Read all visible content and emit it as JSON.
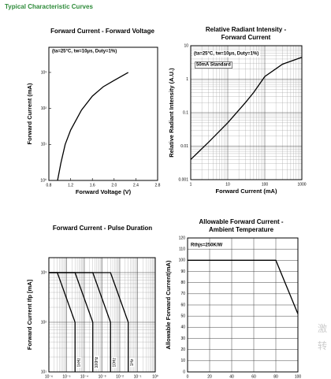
{
  "page_title": "Typical Characteristic Curves",
  "watermark": [
    "激",
    "转"
  ],
  "chart_data": [
    {
      "type": "line",
      "title": "Forward Current - Forward Voltage",
      "x_label": "Forward Voltage (V)",
      "y_label": "Forward Current (mA)",
      "annotations": [
        "(ta=25°C, tw=10μs, Duty=1%)"
      ],
      "xscale": "linear",
      "yscale": "log",
      "grid": false,
      "xlim": [
        0.8,
        2.8
      ],
      "xticks": [
        0.8,
        1.2,
        1.6,
        {
          "value": 2.0,
          "label": "2.0"
        },
        2.4,
        2.8
      ],
      "ylim": [
        1,
        5000
      ],
      "yticks": [
        {
          "value": 1,
          "label": "10⁰"
        },
        {
          "value": 10,
          "label": "10¹"
        },
        {
          "value": 100,
          "label": "10²"
        },
        {
          "value": 1000,
          "label": "10³"
        }
      ],
      "series": [
        {
          "color": "#000000",
          "x": [
            0.96,
            1.02,
            1.1,
            1.2,
            1.4,
            1.6,
            1.8,
            2.0,
            2.26
          ],
          "values": [
            1,
            3,
            10,
            25,
            90,
            220,
            400,
            600,
            1000
          ]
        }
      ]
    },
    {
      "type": "line",
      "title": "Relative Radiant Intensity - Forward Current",
      "x_label": "Forward Current (mA)",
      "y_label": "Relative Radiant Intensity (A.U.)",
      "annotations": [
        "(ta=25°C, tw=10μs, Duty=1%)",
        "50mA Standard"
      ],
      "xscale": "log",
      "yscale": "log",
      "grid": true,
      "xlim": [
        1,
        1000
      ],
      "xticks": [
        1,
        10,
        100,
        1000
      ],
      "ylim": [
        0.001,
        10
      ],
      "yticks": [
        0.001,
        0.01,
        0.1,
        1,
        10
      ],
      "series": [
        {
          "color": "#000000",
          "x": [
            1,
            3,
            10,
            30,
            50,
            100,
            300,
            1000
          ],
          "values": [
            0.004,
            0.013,
            0.05,
            0.2,
            0.4,
            1.2,
            2.8,
            4.5
          ]
        }
      ]
    },
    {
      "type": "line",
      "title": "Forward Current - Pulse Duration",
      "y_label": "Forward Current Ifp [mA]",
      "xscale": "log",
      "yscale": "log",
      "grid": true,
      "xlim": [
        1e-06,
        1
      ],
      "xticks": [
        {
          "value": 1e-06,
          "label": "10⁻⁶"
        },
        {
          "value": 1e-05,
          "label": "10⁻⁵"
        },
        {
          "value": 0.0001,
          "label": "10⁻⁴"
        },
        {
          "value": 0.001,
          "label": "10⁻³"
        },
        {
          "value": 0.01,
          "label": "10⁻²"
        },
        {
          "value": 0.1,
          "label": "10⁻¹"
        },
        {
          "value": 1,
          "label": "10⁰"
        }
      ],
      "ylim": [
        10,
        2000
      ],
      "yticks": [
        {
          "value": 10,
          "label": "10¹"
        },
        {
          "value": 100,
          "label": "10²"
        },
        {
          "value": 1000,
          "label": "10³"
        }
      ],
      "series": [
        {
          "name": "1kHz",
          "color": "#000000",
          "x": [
            1e-06,
            3e-06,
            3e-05,
            3e-05
          ],
          "values": [
            1000,
            1000,
            100,
            10
          ]
        },
        {
          "name": "100Hz",
          "color": "#000000",
          "x": [
            1e-06,
            3e-05,
            0.0003,
            0.0003
          ],
          "values": [
            1000,
            1000,
            100,
            10
          ]
        },
        {
          "name": "10Hz",
          "color": "#000000",
          "x": [
            1e-06,
            0.0003,
            0.003,
            0.003
          ],
          "values": [
            1000,
            1000,
            100,
            10
          ]
        },
        {
          "name": "1Hz",
          "color": "#000000",
          "x": [
            1e-06,
            0.003,
            0.03,
            0.03
          ],
          "values": [
            1000,
            1000,
            100,
            10
          ]
        }
      ]
    },
    {
      "type": "line",
      "title": "Allowable Forward Current - Ambient Temperature",
      "y_label": "Allowable Forward Current(mA)",
      "annotations": [
        "Rthjs=250K/W"
      ],
      "xscale": "linear",
      "yscale": "linear",
      "grid": true,
      "xlim": [
        0,
        100
      ],
      "xticks": [
        0,
        20,
        40,
        60,
        80,
        100
      ],
      "ylim": [
        0,
        120
      ],
      "yticks": [
        0,
        10,
        20,
        30,
        40,
        50,
        60,
        70,
        80,
        90,
        100,
        110,
        120
      ],
      "series": [
        {
          "color": "#000000",
          "x": [
            0,
            80,
            100
          ],
          "values": [
            100,
            100,
            52
          ]
        }
      ]
    }
  ]
}
